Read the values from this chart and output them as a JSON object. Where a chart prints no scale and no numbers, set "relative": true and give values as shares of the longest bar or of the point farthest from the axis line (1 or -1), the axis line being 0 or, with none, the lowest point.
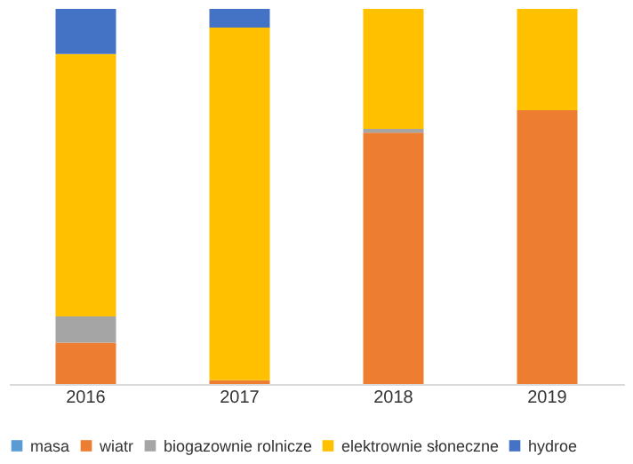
{
  "chart_data": {
    "type": "bar",
    "stacked": true,
    "relative": true,
    "legend": "bottom",
    "categories": [
      "2016",
      "2017",
      "2018",
      "2019"
    ],
    "series": [
      {
        "name": "masa",
        "color": "#5b9bd5",
        "values": [
          0,
          0,
          0,
          0
        ]
      },
      {
        "name": "wiatr",
        "color": "#ed7d31",
        "values": [
          0.11,
          0.01,
          0.67,
          0.73
        ]
      },
      {
        "name": "biogazownie rolnicze",
        "color": "#a5a5a5",
        "values": [
          0.07,
          0,
          0.01,
          0
        ]
      },
      {
        "name": "elektrownie słoneczne",
        "color": "#ffc000",
        "values": [
          0.7,
          0.94,
          0.32,
          0.27
        ]
      },
      {
        "name": "hydroe",
        "color": "#4472c4",
        "values": [
          0.12,
          0.05,
          0,
          0
        ]
      }
    ]
  }
}
